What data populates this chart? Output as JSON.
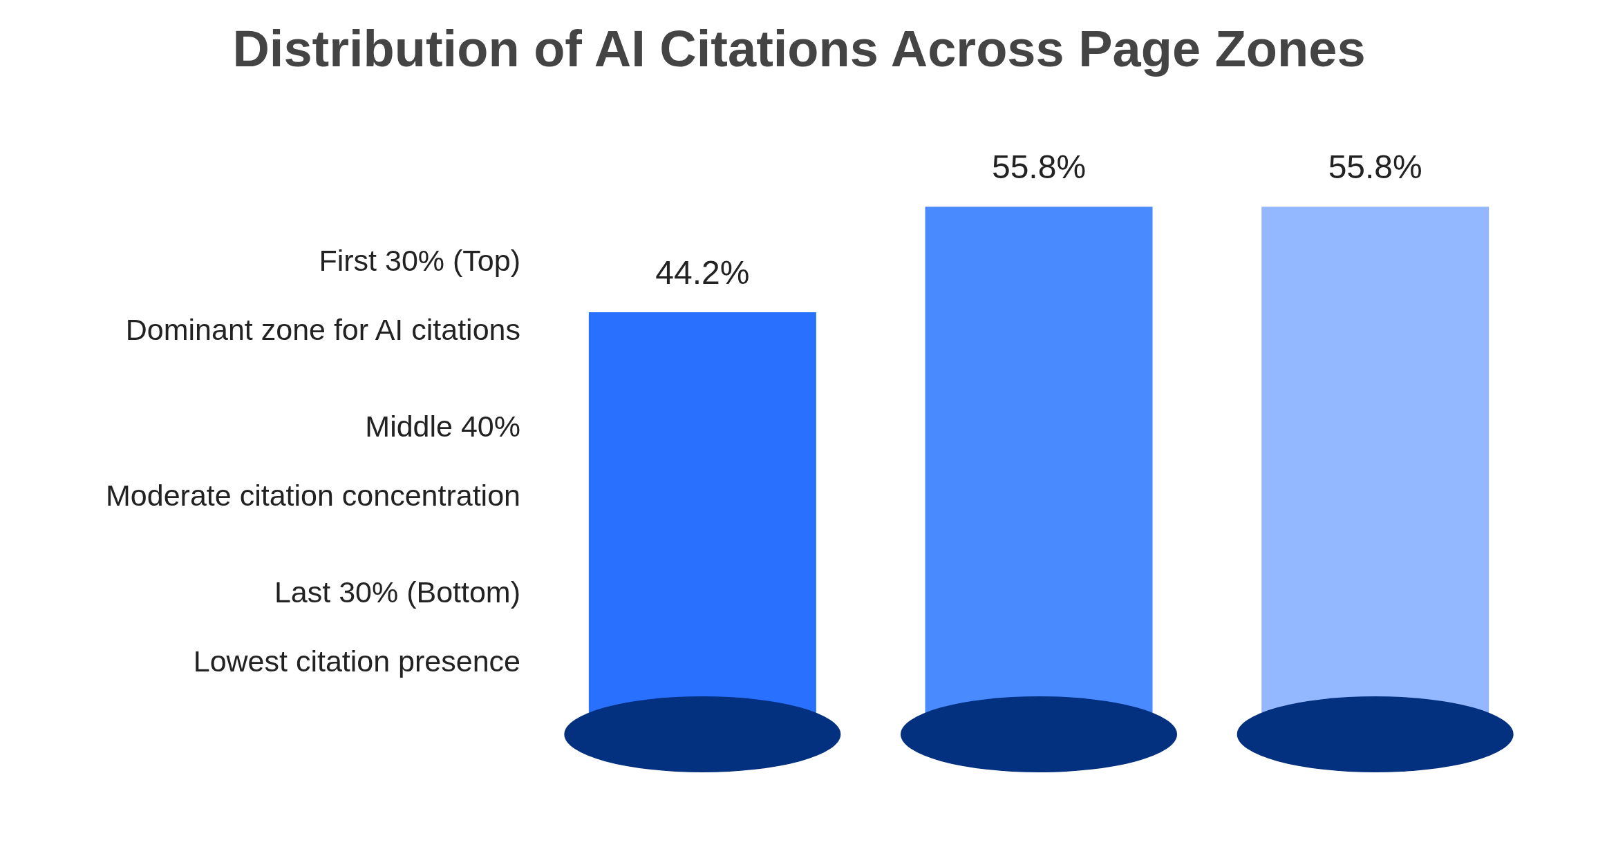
{
  "chart_data": {
    "type": "bar",
    "title": "Distribution of AI Citations Across Page Zones",
    "categories": [
      null,
      null,
      null
    ],
    "values": [
      44.2,
      55.8,
      55.8
    ],
    "colors": [
      "#2970ff",
      "#4a8aff",
      "#94b8ff"
    ],
    "value_labels": [
      "44.2%",
      "55.8%",
      "55.8%"
    ],
    "annotations": [
      "First 30% (Top)",
      "Dominant zone for AI citations",
      "Middle 40%",
      "Moderate citation concentration",
      "Last 30% (Bottom)",
      "Lowest citation presence"
    ],
    "grid": false,
    "legend": false
  }
}
